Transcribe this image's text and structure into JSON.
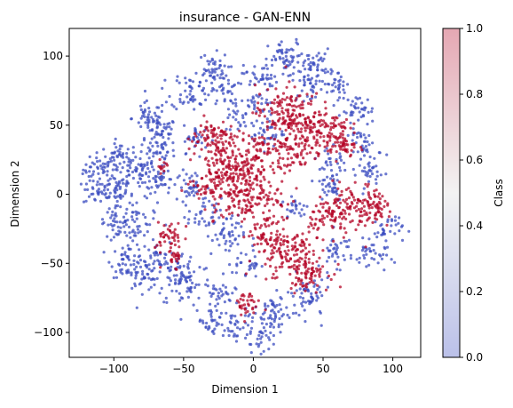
{
  "chart_data": {
    "type": "scatter",
    "title": "insurance - GAN-ENN",
    "xlabel": "Dimension 1",
    "ylabel": "Dimension 2",
    "xlim": [
      -132,
      120
    ],
    "ylim": [
      -118,
      120
    ],
    "xticks": [
      -100,
      -50,
      0,
      50,
      100
    ],
    "yticks": [
      -100,
      -50,
      0,
      50,
      100
    ],
    "grid": false,
    "colorbar": {
      "label": "Class",
      "colormap": "coolwarm",
      "range": [
        0.0,
        1.0
      ],
      "ticks": [
        "0.0",
        "0.2",
        "0.4",
        "0.6",
        "0.8",
        "1.0"
      ],
      "low_color": "#3b4cc0",
      "mid_color": "#dddddd",
      "high_color": "#b40426",
      "alpha": 0.35
    },
    "classes": [
      {
        "value": 0,
        "color": "#3b4cc0"
      },
      {
        "value": 1,
        "color": "#b40426"
      }
    ],
    "clusters": [
      {
        "class": 0,
        "x": -110,
        "y": 18,
        "spread": 6,
        "count": 45
      },
      {
        "class": 0,
        "x": -95,
        "y": 25,
        "spread": 6,
        "count": 50
      },
      {
        "class": 0,
        "x": -112,
        "y": 2,
        "spread": 5,
        "count": 30
      },
      {
        "class": 0,
        "x": -98,
        "y": 5,
        "spread": 6,
        "count": 45
      },
      {
        "class": 0,
        "x": -80,
        "y": 15,
        "spread": 7,
        "count": 50
      },
      {
        "class": 0,
        "x": -85,
        "y": -20,
        "spread": 8,
        "count": 60
      },
      {
        "class": 0,
        "x": -100,
        "y": -20,
        "spread": 5,
        "count": 30
      },
      {
        "class": 0,
        "x": -70,
        "y": 30,
        "spread": 7,
        "count": 45
      },
      {
        "class": 0,
        "x": -75,
        "y": 55,
        "spread": 6,
        "count": 45
      },
      {
        "class": 0,
        "x": -65,
        "y": 45,
        "spread": 5,
        "count": 35
      },
      {
        "class": 0,
        "x": -65,
        "y": 10,
        "spread": 5,
        "count": 30
      },
      {
        "class": 0,
        "x": -90,
        "y": -48,
        "spread": 6,
        "count": 45
      },
      {
        "class": 0,
        "x": -80,
        "y": -58,
        "spread": 6,
        "count": 45
      },
      {
        "class": 0,
        "x": -70,
        "y": -45,
        "spread": 5,
        "count": 30
      },
      {
        "class": 0,
        "x": -50,
        "y": -62,
        "spread": 10,
        "count": 95
      },
      {
        "class": 0,
        "x": -45,
        "y": 75,
        "spread": 7,
        "count": 55
      },
      {
        "class": 0,
        "x": -30,
        "y": 90,
        "spread": 6,
        "count": 45
      },
      {
        "class": 0,
        "x": -20,
        "y": 75,
        "spread": 5,
        "count": 30
      },
      {
        "class": 0,
        "x": 5,
        "y": 85,
        "spread": 6,
        "count": 40
      },
      {
        "class": 0,
        "x": 25,
        "y": 97,
        "spread": 7,
        "count": 55
      },
      {
        "class": 0,
        "x": 45,
        "y": 95,
        "spread": 5,
        "count": 35
      },
      {
        "class": 0,
        "x": 40,
        "y": 80,
        "spread": 6,
        "count": 40
      },
      {
        "class": 0,
        "x": 60,
        "y": 80,
        "spread": 5,
        "count": 30
      },
      {
        "class": 0,
        "x": 75,
        "y": 60,
        "spread": 6,
        "count": 40
      },
      {
        "class": 0,
        "x": 80,
        "y": 35,
        "spread": 6,
        "count": 40
      },
      {
        "class": 0,
        "x": 55,
        "y": 20,
        "spread": 6,
        "count": 35
      },
      {
        "class": 0,
        "x": 85,
        "y": 15,
        "spread": 5,
        "count": 30
      },
      {
        "class": 0,
        "x": 95,
        "y": -25,
        "spread": 6,
        "count": 35
      },
      {
        "class": 0,
        "x": 85,
        "y": -45,
        "spread": 6,
        "count": 35
      },
      {
        "class": 0,
        "x": 60,
        "y": -40,
        "spread": 6,
        "count": 35
      },
      {
        "class": 0,
        "x": 40,
        "y": -75,
        "spread": 8,
        "count": 60
      },
      {
        "class": 0,
        "x": 15,
        "y": -85,
        "spread": 6,
        "count": 40
      },
      {
        "class": 0,
        "x": 5,
        "y": -100,
        "spread": 7,
        "count": 50
      },
      {
        "class": 0,
        "x": -15,
        "y": -95,
        "spread": 5,
        "count": 30
      },
      {
        "class": 0,
        "x": -30,
        "y": -92,
        "spread": 5,
        "count": 25
      },
      {
        "class": 0,
        "x": -25,
        "y": -75,
        "spread": 6,
        "count": 35
      },
      {
        "class": 0,
        "x": -20,
        "y": -30,
        "spread": 7,
        "count": 45
      },
      {
        "class": 0,
        "x": -35,
        "y": -15,
        "spread": 6,
        "count": 35
      },
      {
        "class": 0,
        "x": -45,
        "y": 5,
        "spread": 6,
        "count": 35
      },
      {
        "class": 0,
        "x": -5,
        "y": -50,
        "spread": 5,
        "count": 30
      },
      {
        "class": 0,
        "x": 10,
        "y": 45,
        "spread": 6,
        "count": 35
      },
      {
        "class": 0,
        "x": 5,
        "y": 65,
        "spread": 5,
        "count": 25
      },
      {
        "class": 0,
        "x": 55,
        "y": 5,
        "spread": 5,
        "count": 25
      },
      {
        "class": 0,
        "x": 30,
        "y": -10,
        "spread": 5,
        "count": 25
      },
      {
        "class": 0,
        "x": -40,
        "y": 40,
        "spread": 5,
        "count": 30
      },
      {
        "class": 0,
        "x": -10,
        "y": 55,
        "spread": 5,
        "count": 25
      },
      {
        "class": 1,
        "x": -15,
        "y": 20,
        "spread": 13,
        "count": 190
      },
      {
        "class": 1,
        "x": -5,
        "y": 0,
        "spread": 12,
        "count": 170
      },
      {
        "class": 1,
        "x": -30,
        "y": 40,
        "spread": 8,
        "count": 80
      },
      {
        "class": 1,
        "x": 20,
        "y": 60,
        "spread": 9,
        "count": 100
      },
      {
        "class": 1,
        "x": 40,
        "y": 55,
        "spread": 8,
        "count": 80
      },
      {
        "class": 1,
        "x": 30,
        "y": 35,
        "spread": 10,
        "count": 110
      },
      {
        "class": 1,
        "x": 55,
        "y": 45,
        "spread": 7,
        "count": 70
      },
      {
        "class": 1,
        "x": 65,
        "y": 35,
        "spread": 5,
        "count": 35
      },
      {
        "class": 1,
        "x": 75,
        "y": -10,
        "spread": 9,
        "count": 100
      },
      {
        "class": 1,
        "x": 55,
        "y": -15,
        "spread": 7,
        "count": 70
      },
      {
        "class": 1,
        "x": 90,
        "y": -10,
        "spread": 5,
        "count": 35
      },
      {
        "class": 1,
        "x": 25,
        "y": -45,
        "spread": 11,
        "count": 140
      },
      {
        "class": 1,
        "x": 40,
        "y": -55,
        "spread": 7,
        "count": 60
      },
      {
        "class": 1,
        "x": 10,
        "y": -30,
        "spread": 6,
        "count": 45
      },
      {
        "class": 1,
        "x": -60,
        "y": -30,
        "spread": 5,
        "count": 40
      },
      {
        "class": 1,
        "x": -57,
        "y": -45,
        "spread": 4,
        "count": 25
      },
      {
        "class": 1,
        "x": -5,
        "y": -80,
        "spread": 5,
        "count": 35
      },
      {
        "class": 1,
        "x": -35,
        "y": 5,
        "spread": 5,
        "count": 30
      },
      {
        "class": 1,
        "x": -65,
        "y": 20,
        "spread": 3,
        "count": 12
      },
      {
        "class": 1,
        "x": 5,
        "y": 35,
        "spread": 5,
        "count": 30
      }
    ]
  }
}
